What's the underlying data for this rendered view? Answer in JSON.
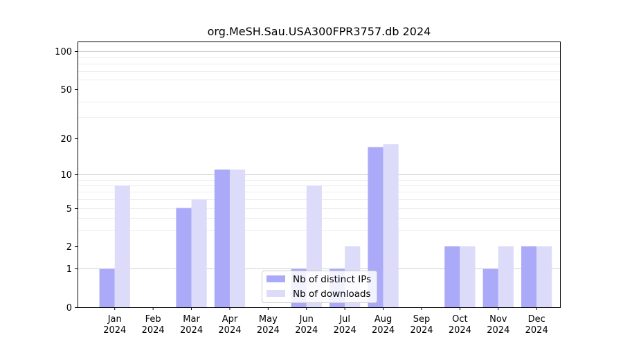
{
  "chart_data": {
    "type": "bar",
    "title": "org.MeSH.Sau.USA300FPR3757.db 2024",
    "xlabel": "",
    "ylabel": "",
    "yscale": "log1p",
    "ylim": [
      0,
      120
    ],
    "yticks": [
      0,
      1,
      2,
      5,
      10,
      20,
      50,
      100
    ],
    "grid": true,
    "legend_position": "bottom-center",
    "categories": [
      [
        "Jan",
        "2024"
      ],
      [
        "Feb",
        "2024"
      ],
      [
        "Mar",
        "2024"
      ],
      [
        "Apr",
        "2024"
      ],
      [
        "May",
        "2024"
      ],
      [
        "Jun",
        "2024"
      ],
      [
        "Jul",
        "2024"
      ],
      [
        "Aug",
        "2024"
      ],
      [
        "Sep",
        "2024"
      ],
      [
        "Oct",
        "2024"
      ],
      [
        "Nov",
        "2024"
      ],
      [
        "Dec",
        "2024"
      ]
    ],
    "series": [
      {
        "name": "Nb of distinct IPs",
        "color": "#aaaaf8",
        "values": [
          1,
          0,
          5,
          11,
          0,
          1,
          1,
          17,
          0,
          2,
          1,
          2
        ]
      },
      {
        "name": "Nb of downloads",
        "color": "#dcdcfa",
        "values": [
          8,
          0,
          6,
          11,
          0,
          8,
          2,
          18,
          0,
          2,
          2,
          2
        ]
      }
    ]
  }
}
